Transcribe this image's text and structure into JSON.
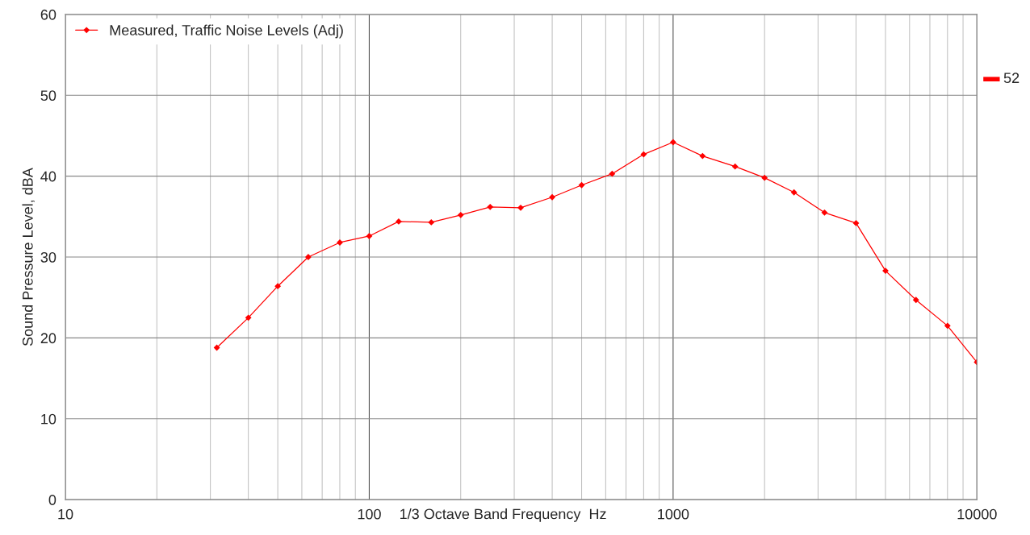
{
  "chart_data": {
    "type": "line",
    "xlabel": "1/3 Octave Band Frequency  Hz",
    "ylabel": "Sound Pressure Level, dBA",
    "log": "x",
    "xlim": [
      10,
      10000
    ],
    "xticks": [
      10,
      100,
      1000,
      10000
    ],
    "ylim": [
      0,
      60
    ],
    "yticks": [
      0,
      10,
      20,
      30,
      40,
      50,
      60
    ],
    "grid": true,
    "legend": "top left",
    "marker": "diamond",
    "line_style": "solid",
    "series": [
      {
        "name": "Measured, Traffic Noise Levels (Adj)",
        "color": "#ff0000",
        "x": [
          31.5,
          40,
          50,
          63,
          80,
          100,
          125,
          160,
          200,
          250,
          315,
          400,
          500,
          630,
          800,
          1000,
          1250,
          1600,
          2000,
          2500,
          3150,
          4000,
          5000,
          6300,
          8000,
          10000
        ],
        "values": [
          18.8,
          22.5,
          26.4,
          30.0,
          31.8,
          32.6,
          34.4,
          34.3,
          35.2,
          36.2,
          36.1,
          37.4,
          38.9,
          40.3,
          42.7,
          44.2,
          42.5,
          41.2,
          39.8,
          38.0,
          35.5,
          34.2,
          28.3,
          24.7,
          21.5,
          17.0
        ]
      }
    ],
    "ref_lines": [
      {
        "axis": "y",
        "value": 52,
        "label": "52",
        "color": "#ff0000"
      }
    ]
  }
}
